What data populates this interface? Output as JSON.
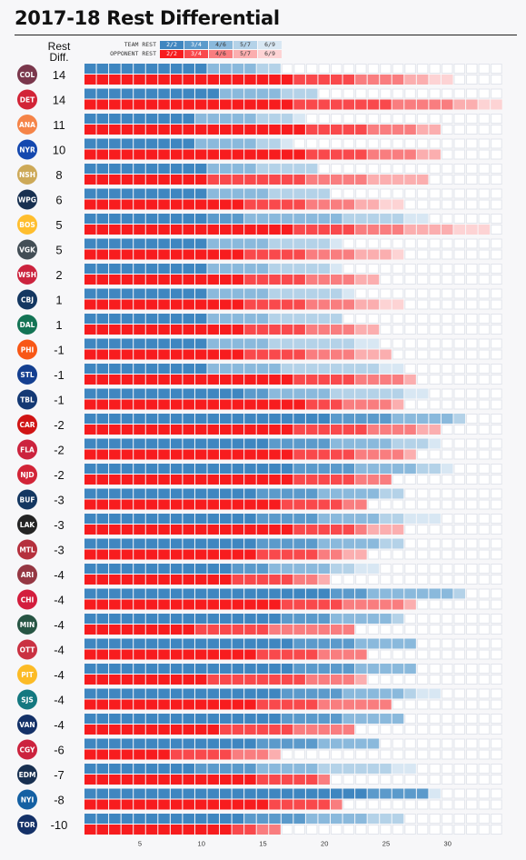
{
  "title": "2017-18 Rest Differential",
  "column_header": [
    "Rest",
    "Diff."
  ],
  "legend": {
    "rows": [
      {
        "label": "TEAM REST",
        "cells": [
          "2/2",
          "3/4",
          "4/6",
          "5/7",
          "6/9"
        ]
      },
      {
        "label": "OPPONENT REST",
        "cells": [
          "2/2",
          "3/4",
          "4/6",
          "5/7",
          "6/9"
        ]
      }
    ]
  },
  "colors": {
    "team": [
      "#3f86c0",
      "#5b9acb",
      "#8ab9dc",
      "#b4d2e8",
      "#d8e7f3"
    ],
    "opponent": [
      "#f71c1e",
      "#f9494c",
      "#f97d7f",
      "#fbaeaf",
      "#fdd3d4"
    ],
    "empty_cell": "#ffffff",
    "empty_border": "#e2e5ec"
  },
  "chart_data": {
    "type": "bar",
    "description_of_values": "Each team has two stacked bars split into five segments by rest category (2/2, 3/4, 4/6, 5/7, 6/9). Values are game counts.",
    "x_ticks": [
      5,
      10,
      15,
      20,
      25,
      30
    ],
    "xlim": [
      0,
      34
    ],
    "categories_segments": [
      "2/2",
      "3/4",
      "4/6",
      "5/7",
      "6/9"
    ],
    "teams": [
      {
        "icon": "avalanche-logo-icon",
        "abbr": "COL",
        "diff": "14",
        "team": [
          10,
          0,
          4,
          2,
          0
        ],
        "opponent": [
          17,
          5,
          4,
          2,
          2
        ]
      },
      {
        "icon": "red-wings-logo-icon",
        "abbr": "DET",
        "diff": "14",
        "team": [
          11,
          0,
          5,
          3,
          0
        ],
        "opponent": [
          17,
          8,
          5,
          2,
          2
        ]
      },
      {
        "icon": "ducks-logo-icon",
        "abbr": "ANA",
        "diff": "11",
        "team": [
          9,
          0,
          5,
          3,
          1
        ],
        "opponent": [
          18,
          5,
          4,
          2,
          0
        ]
      },
      {
        "icon": "rangers-logo-icon",
        "abbr": "NYR",
        "diff": "10",
        "team": [
          9,
          0,
          5,
          2,
          1
        ],
        "opponent": [
          18,
          5,
          4,
          2,
          0
        ]
      },
      {
        "icon": "predators-logo-icon",
        "abbr": "NSH",
        "diff": "8",
        "team": [
          10,
          0,
          4,
          5,
          0
        ],
        "opponent": [
          10,
          8,
          5,
          5,
          0
        ]
      },
      {
        "icon": "jets-logo-icon",
        "abbr": "WPG",
        "diff": "6",
        "team": [
          10,
          0,
          5,
          5,
          0
        ],
        "opponent": [
          13,
          5,
          4,
          2,
          2
        ]
      },
      {
        "icon": "bruins-logo-icon",
        "abbr": "BOS",
        "diff": "5",
        "team": [
          10,
          3,
          8,
          5,
          2
        ],
        "opponent": [
          17,
          5,
          4,
          4,
          3
        ]
      },
      {
        "icon": "golden-knights-logo-icon",
        "abbr": "VGK",
        "diff": "5",
        "team": [
          10,
          0,
          5,
          5,
          1
        ],
        "opponent": [
          13,
          5,
          4,
          3,
          1
        ]
      },
      {
        "icon": "capitals-logo-icon",
        "abbr": "WSH",
        "diff": "2",
        "team": [
          10,
          0,
          5,
          5,
          1
        ],
        "opponent": [
          13,
          5,
          4,
          2,
          0
        ]
      },
      {
        "icon": "blue-jackets-logo-icon",
        "abbr": "CBJ",
        "diff": "1",
        "team": [
          10,
          0,
          5,
          6,
          1
        ],
        "opponent": [
          13,
          5,
          4,
          2,
          2
        ]
      },
      {
        "icon": "stars-logo-icon",
        "abbr": "DAL",
        "diff": "1",
        "team": [
          10,
          0,
          5,
          6,
          0
        ],
        "opponent": [
          13,
          5,
          4,
          2,
          0
        ]
      },
      {
        "icon": "flyers-logo-icon",
        "abbr": "PHI",
        "diff": "-1",
        "team": [
          10,
          0,
          5,
          7,
          2
        ],
        "opponent": [
          13,
          5,
          4,
          3,
          0
        ]
      },
      {
        "icon": "blues-logo-icon",
        "abbr": "STL",
        "diff": "-1",
        "team": [
          10,
          0,
          6,
          8,
          2
        ],
        "opponent": [
          17,
          5,
          4,
          1,
          0
        ]
      },
      {
        "icon": "lightning-logo-icon",
        "abbr": "TBL",
        "diff": "-1",
        "team": [
          13,
          2,
          5,
          6,
          2
        ],
        "opponent": [
          18,
          3,
          4,
          1,
          0
        ]
      },
      {
        "icon": "hurricanes-logo-icon",
        "abbr": "CAR",
        "diff": "-2",
        "team": [
          20,
          5,
          5,
          1,
          0
        ],
        "opponent": [
          17,
          6,
          4,
          2,
          0
        ]
      },
      {
        "icon": "panthers-logo-icon",
        "abbr": "FLA",
        "diff": "-2",
        "team": [
          15,
          5,
          5,
          3,
          1
        ],
        "opponent": [
          17,
          5,
          4,
          1,
          0
        ]
      },
      {
        "icon": "devils-logo-icon",
        "abbr": "NJD",
        "diff": "-2",
        "team": [
          17,
          5,
          5,
          2,
          1
        ],
        "opponent": [
          17,
          5,
          3,
          0,
          0
        ]
      },
      {
        "icon": "sabres-logo-icon",
        "abbr": "BUF",
        "diff": "-3",
        "team": [
          14,
          5,
          5,
          2,
          0
        ],
        "opponent": [
          16,
          5,
          2,
          0,
          0
        ]
      },
      {
        "icon": "kings-logo-icon",
        "abbr": "LAK",
        "diff": "-3",
        "team": [
          14,
          5,
          5,
          2,
          3
        ],
        "opponent": [
          17,
          5,
          1,
          3,
          0
        ]
      },
      {
        "icon": "canadiens-logo-icon",
        "abbr": "MTL",
        "diff": "-3",
        "team": [
          14,
          5,
          5,
          2,
          0
        ],
        "opponent": [
          14,
          5,
          2,
          2,
          0
        ]
      },
      {
        "icon": "coyotes-logo-icon",
        "abbr": "ARI",
        "diff": "-4",
        "team": [
          12,
          3,
          5,
          2,
          2
        ],
        "opponent": [
          12,
          5,
          2,
          1,
          0
        ]
      },
      {
        "icon": "blackhawks-logo-icon",
        "abbr": "CHI",
        "diff": "-4",
        "team": [
          20,
          3,
          7,
          1,
          0
        ],
        "opponent": [
          16,
          5,
          5,
          1,
          0
        ]
      },
      {
        "icon": "wild-logo-icon",
        "abbr": "MIN",
        "diff": "-4",
        "team": [
          16,
          4,
          5,
          1,
          0
        ],
        "opponent": [
          9,
          6,
          7,
          0,
          0
        ]
      },
      {
        "icon": "senators-logo-icon",
        "abbr": "OTT",
        "diff": "-4",
        "team": [
          17,
          5,
          5,
          0,
          0
        ],
        "opponent": [
          14,
          5,
          4,
          0,
          0
        ]
      },
      {
        "icon": "penguins-logo-icon",
        "abbr": "PIT",
        "diff": "-4",
        "team": [
          17,
          5,
          5,
          0,
          0
        ],
        "opponent": [
          10,
          8,
          4,
          1,
          0
        ]
      },
      {
        "icon": "sharks-logo-icon",
        "abbr": "SJS",
        "diff": "-4",
        "team": [
          16,
          5,
          5,
          1,
          2
        ],
        "opponent": [
          14,
          5,
          6,
          0,
          0
        ]
      },
      {
        "icon": "canucks-logo-icon",
        "abbr": "VAN",
        "diff": "-4",
        "team": [
          16,
          5,
          5,
          0,
          0
        ],
        "opponent": [
          11,
          6,
          5,
          0,
          0
        ]
      },
      {
        "icon": "flames-logo-icon",
        "abbr": "CGY",
        "diff": "-6",
        "team": [
          14,
          5,
          5,
          0,
          0
        ],
        "opponent": [
          7,
          5,
          3,
          1,
          0
        ]
      },
      {
        "icon": "oilers-logo-icon",
        "abbr": "EDM",
        "diff": "-7",
        "team": [
          9,
          5,
          5,
          6,
          2
        ],
        "opponent": [
          14,
          5,
          1,
          0,
          0
        ]
      },
      {
        "icon": "islanders-logo-icon",
        "abbr": "NYI",
        "diff": "-8",
        "team": [
          23,
          5,
          0,
          0,
          1
        ],
        "opponent": [
          15,
          5,
          1,
          0,
          0
        ]
      },
      {
        "icon": "maple-leafs-logo-icon",
        "abbr": "TOR",
        "diff": "-10",
        "team": [
          13,
          5,
          5,
          3,
          0
        ],
        "opponent": [
          12,
          2,
          2,
          0,
          0
        ]
      }
    ]
  }
}
